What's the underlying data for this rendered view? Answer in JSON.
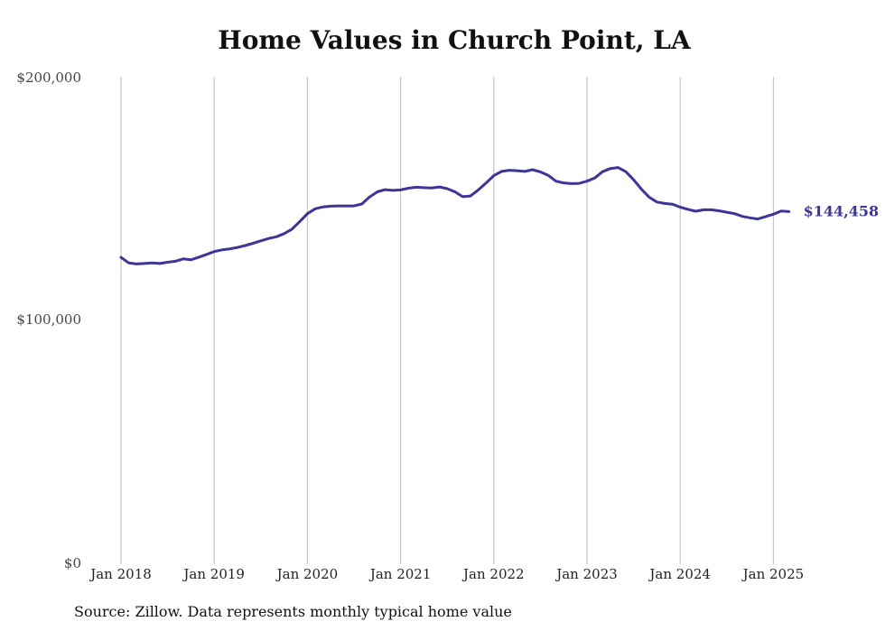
{
  "chart_data": {
    "type": "line",
    "title": "Home Values in Church Point, LA",
    "source": "Source: Zillow. Data represents monthly typical home value",
    "ylim": [
      0,
      200000
    ],
    "y_ticks": [
      {
        "value": 0,
        "label": "$0"
      },
      {
        "value": 100000,
        "label": "$100,000"
      },
      {
        "value": 200000,
        "label": "$200,000"
      }
    ],
    "x_ticks": [
      {
        "value": "2018-01",
        "label": "Jan 2018"
      },
      {
        "value": "2019-01",
        "label": "Jan 2019"
      },
      {
        "value": "2020-01",
        "label": "Jan 2020"
      },
      {
        "value": "2021-01",
        "label": "Jan 2021"
      },
      {
        "value": "2022-01",
        "label": "Jan 2022"
      },
      {
        "value": "2023-01",
        "label": "Jan 2023"
      },
      {
        "value": "2024-01",
        "label": "Jan 2024"
      },
      {
        "value": "2025-01",
        "label": "Jan 2025"
      }
    ],
    "grid": "vertical",
    "line_color": "#3d3598",
    "end_label": "$144,458",
    "series": [
      {
        "x": [
          "2018-01",
          "2018-02",
          "2018-03",
          "2018-04",
          "2018-05",
          "2018-06",
          "2018-07",
          "2018-08",
          "2018-09",
          "2018-10",
          "2018-11",
          "2018-12",
          "2019-01",
          "2019-02",
          "2019-03",
          "2019-04",
          "2019-05",
          "2019-06",
          "2019-07",
          "2019-08",
          "2019-09",
          "2019-10",
          "2019-11",
          "2019-12",
          "2020-01",
          "2020-02",
          "2020-03",
          "2020-04",
          "2020-05",
          "2020-06",
          "2020-07",
          "2020-08",
          "2020-09",
          "2020-10",
          "2020-11",
          "2020-12",
          "2021-01",
          "2021-02",
          "2021-03",
          "2021-04",
          "2021-05",
          "2021-06",
          "2021-07",
          "2021-08",
          "2021-09",
          "2021-10",
          "2021-11",
          "2021-12",
          "2022-01",
          "2022-02",
          "2022-03",
          "2022-04",
          "2022-05",
          "2022-06",
          "2022-07",
          "2022-08",
          "2022-09",
          "2022-10",
          "2022-11",
          "2022-12",
          "2023-01",
          "2023-02",
          "2023-03",
          "2023-04",
          "2023-05",
          "2023-06",
          "2023-07",
          "2023-08",
          "2023-09",
          "2023-10",
          "2023-11",
          "2023-12",
          "2024-01",
          "2024-02",
          "2024-03",
          "2024-04",
          "2024-05",
          "2024-06",
          "2024-07",
          "2024-08",
          "2024-09",
          "2024-10",
          "2024-11",
          "2024-12",
          "2025-01",
          "2025-02",
          "2025-03"
        ],
        "values": [
          125600,
          123300,
          122900,
          123100,
          123300,
          123100,
          123600,
          124000,
          125000,
          124600,
          125700,
          126800,
          128000,
          128700,
          129100,
          129700,
          130500,
          131400,
          132400,
          133400,
          134100,
          135400,
          137200,
          140300,
          143600,
          145600,
          146400,
          146700,
          146800,
          146800,
          146800,
          147600,
          150500,
          152600,
          153500,
          153200,
          153400,
          154100,
          154500,
          154300,
          154200,
          154600,
          153900,
          152600,
          150600,
          150900,
          153400,
          156200,
          159300,
          161000,
          161500,
          161300,
          161000,
          161700,
          160800,
          159400,
          157000,
          156300,
          156000,
          156100,
          157000,
          158300,
          160900,
          162200,
          162600,
          160900,
          157600,
          153700,
          150400,
          148400,
          147800,
          147500,
          146300,
          145400,
          144600,
          145200,
          145200,
          144800,
          144200,
          143600,
          142500,
          141900,
          141400,
          142400,
          143400,
          144700,
          144458
        ]
      }
    ]
  }
}
